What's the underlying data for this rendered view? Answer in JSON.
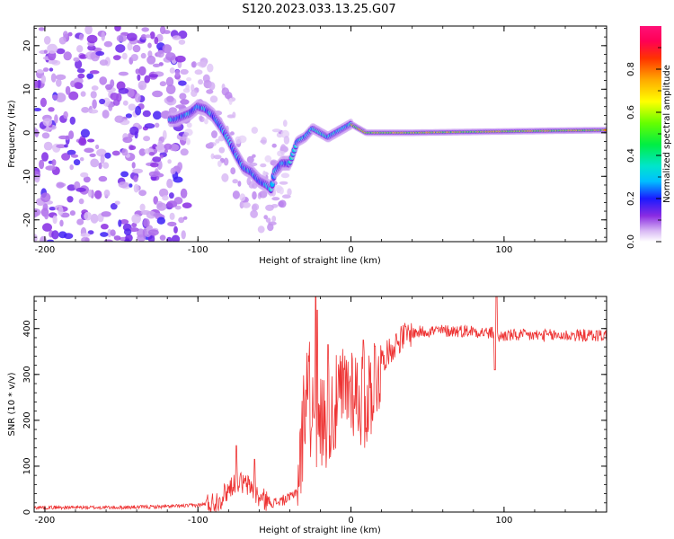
{
  "title": "S120.2023.033.13.25.G07",
  "chart_data": [
    {
      "type": "heatmap",
      "name": "spectrogram",
      "xlabel": "Height of straight line (km)",
      "ylabel": "Frequency (Hz)",
      "xlim": [
        -207,
        167
      ],
      "ylim": [
        -25,
        24.5
      ],
      "xticks": [
        -200,
        -100,
        0,
        100
      ],
      "yticks": [
        -20,
        -10,
        0,
        10,
        20
      ],
      "ridge": {
        "x": [
          -115,
          -105,
          -100,
          -95,
          -90,
          -85,
          -80,
          -75,
          -70,
          -65,
          -60,
          -55,
          -52,
          -50,
          -45,
          -40,
          -35,
          -30,
          -25,
          -20,
          -15,
          -10,
          -5,
          0,
          5,
          10,
          20,
          40,
          60,
          80,
          100,
          120,
          140,
          167
        ],
        "y": [
          3,
          4.5,
          6,
          5.5,
          4,
          1.5,
          -1.5,
          -5,
          -8,
          -9,
          -11,
          -12,
          -13,
          -9,
          -7,
          -7,
          -2,
          -1,
          1,
          0,
          -1,
          0,
          1,
          2,
          1,
          0,
          0,
          0,
          0.1,
          0.2,
          0.3,
          0.4,
          0.5,
          0.6
        ]
      },
      "colorbar": {
        "label": "Normalized spectral amplitude",
        "range": [
          0,
          1
        ],
        "ticks": [
          0.0,
          0.2,
          0.4,
          0.6,
          0.8
        ],
        "tick_labels": [
          "0.0",
          "0.2",
          "0.4",
          "0.6",
          "0.8"
        ]
      }
    },
    {
      "type": "line",
      "name": "snr",
      "xlabel": "Height of straight line (km)",
      "ylabel": "SNR (10 * v/v)",
      "xlim": [
        -207,
        167
      ],
      "ylim": [
        0,
        470
      ],
      "xticks": [
        -200,
        -100,
        0,
        100
      ],
      "yticks": [
        0,
        100,
        200,
        300,
        400
      ],
      "color": "#ee3333",
      "envelope": {
        "x": [
          -207,
          -150,
          -120,
          -100,
          -90,
          -85,
          -80,
          -75,
          -70,
          -65,
          -60,
          -55,
          -50,
          -45,
          -40,
          -35,
          -32,
          -30,
          -28,
          -26,
          -24,
          -22,
          -20,
          -18,
          -15,
          -10,
          -5,
          0,
          5,
          10,
          15,
          20,
          25,
          30,
          35,
          40,
          50,
          60,
          80,
          90,
          94,
          96,
          100,
          120,
          140,
          167
        ],
        "y": [
          10,
          10,
          12,
          15,
          20,
          30,
          50,
          70,
          60,
          55,
          30,
          25,
          20,
          25,
          30,
          50,
          150,
          250,
          320,
          200,
          260,
          150,
          200,
          200,
          210,
          230,
          260,
          280,
          250,
          240,
          290,
          330,
          350,
          370,
          385,
          390,
          395,
          395,
          395,
          390,
          390,
          380,
          385,
          385,
          385,
          385
        ]
      },
      "spikes": [
        {
          "x": -75,
          "y": 145
        },
        {
          "x": -63,
          "y": 115
        },
        {
          "x": -23,
          "y": 470
        },
        {
          "x": -22,
          "y": 440
        },
        {
          "x": -15,
          "y": 365
        },
        {
          "x": 8,
          "y": 375
        },
        {
          "x": 95,
          "y": 472
        },
        {
          "x": 94,
          "y": 310
        }
      ]
    }
  ]
}
